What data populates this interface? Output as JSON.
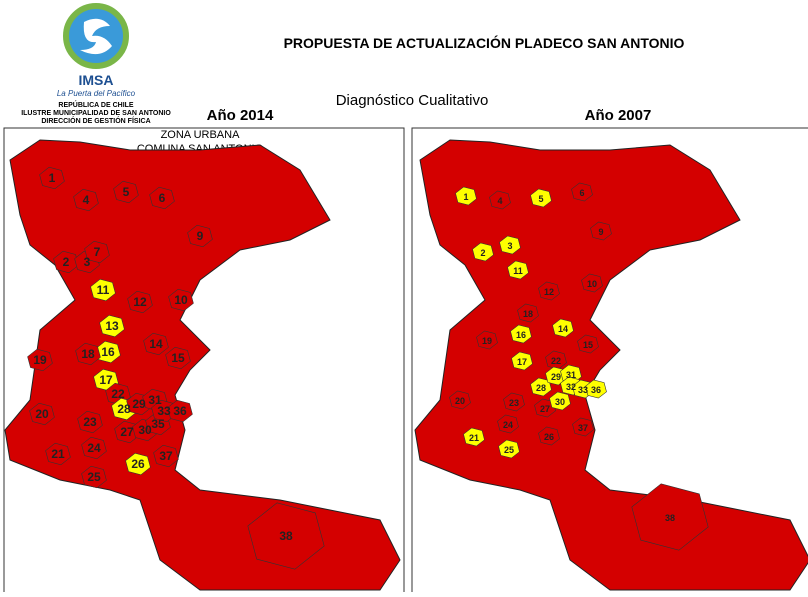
{
  "header": {
    "logo_text": "IMSA",
    "logo_tagline": "La Puerta del Pacífico",
    "org_lines": [
      "REPÚBLICA DE CHILE",
      "ILUSTRE MUNICIPALIDAD DE SAN ANTONIO",
      "DIRECCIÓN DE GESTIÓN FÍSICA"
    ],
    "title": "PROPUESTA DE ACTUALIZACIÓN PLADECO SAN ANTONIO",
    "subtitle": "Diagnóstico Cualitativo"
  },
  "maps": [
    {
      "year": "Año 2014",
      "caption": [
        "ZONA URBANA",
        "COMUNA SAN ANTONIO"
      ],
      "districts": [
        {
          "label": "1",
          "color": "#d40000"
        },
        {
          "label": "4",
          "color": "#d40000"
        },
        {
          "label": "5",
          "color": "#d40000"
        },
        {
          "label": "6",
          "color": "#d40000"
        },
        {
          "label": "9",
          "color": "#d40000"
        },
        {
          "label": "2",
          "color": "#d40000"
        },
        {
          "label": "3",
          "color": "#d40000"
        },
        {
          "label": "7",
          "color": "#d40000"
        },
        {
          "label": "11",
          "color": "#ffff00"
        },
        {
          "label": "12",
          "color": "#d40000"
        },
        {
          "label": "10",
          "color": "#d40000"
        },
        {
          "label": "13",
          "color": "#ffff00"
        },
        {
          "label": "14",
          "color": "#d40000"
        },
        {
          "label": "15",
          "color": "#d40000"
        },
        {
          "label": "16",
          "color": "#ffff00"
        },
        {
          "label": "18",
          "color": "#d40000"
        },
        {
          "label": "19",
          "color": "#d40000"
        },
        {
          "label": "17",
          "color": "#ffff00"
        },
        {
          "label": "22",
          "color": "#d40000"
        },
        {
          "label": "20",
          "color": "#d40000"
        },
        {
          "label": "28",
          "color": "#ffff00"
        },
        {
          "label": "29",
          "color": "#d40000"
        },
        {
          "label": "31",
          "color": "#d40000"
        },
        {
          "label": "23",
          "color": "#d40000"
        },
        {
          "label": "27",
          "color": "#d40000"
        },
        {
          "label": "30",
          "color": "#d40000"
        },
        {
          "label": "35",
          "color": "#d40000"
        },
        {
          "label": "33",
          "color": "#d40000"
        },
        {
          "label": "36",
          "color": "#d40000"
        },
        {
          "label": "24",
          "color": "#d40000"
        },
        {
          "label": "21",
          "color": "#d40000"
        },
        {
          "label": "26",
          "color": "#ffff00"
        },
        {
          "label": "37",
          "color": "#d40000"
        },
        {
          "label": "25",
          "color": "#d40000"
        },
        {
          "label": "38",
          "color": "#d40000"
        }
      ]
    },
    {
      "year": "Año 2007",
      "districts": [
        {
          "label": "1",
          "color": "#ffff00"
        },
        {
          "label": "4",
          "color": "#d40000"
        },
        {
          "label": "5",
          "color": "#ffff00"
        },
        {
          "label": "6",
          "color": "#d40000"
        },
        {
          "label": "9",
          "color": "#d40000"
        },
        {
          "label": "2",
          "color": "#ffff00"
        },
        {
          "label": "3",
          "color": "#ffff00"
        },
        {
          "label": "11",
          "color": "#ffff00"
        },
        {
          "label": "10",
          "color": "#d40000"
        },
        {
          "label": "12",
          "color": "#d40000"
        },
        {
          "label": "18",
          "color": "#d40000"
        },
        {
          "label": "14",
          "color": "#ffff00"
        },
        {
          "label": "15",
          "color": "#d40000"
        },
        {
          "label": "16",
          "color": "#ffff00"
        },
        {
          "label": "19",
          "color": "#d40000"
        },
        {
          "label": "17",
          "color": "#ffff00"
        },
        {
          "label": "22",
          "color": "#d40000"
        },
        {
          "label": "20",
          "color": "#d40000"
        },
        {
          "label": "28",
          "color": "#ffff00"
        },
        {
          "label": "29",
          "color": "#ffff00"
        },
        {
          "label": "31",
          "color": "#ffff00"
        },
        {
          "label": "32",
          "color": "#ffff00"
        },
        {
          "label": "33",
          "color": "#ffff00"
        },
        {
          "label": "36",
          "color": "#ffff00"
        },
        {
          "label": "23",
          "color": "#d40000"
        },
        {
          "label": "27",
          "color": "#d40000"
        },
        {
          "label": "30",
          "color": "#ffff00"
        },
        {
          "label": "24",
          "color": "#d40000"
        },
        {
          "label": "26",
          "color": "#d40000"
        },
        {
          "label": "37",
          "color": "#d40000"
        },
        {
          "label": "21",
          "color": "#ffff00"
        },
        {
          "label": "25",
          "color": "#ffff00"
        },
        {
          "label": "38",
          "color": "#d40000"
        }
      ]
    }
  ]
}
